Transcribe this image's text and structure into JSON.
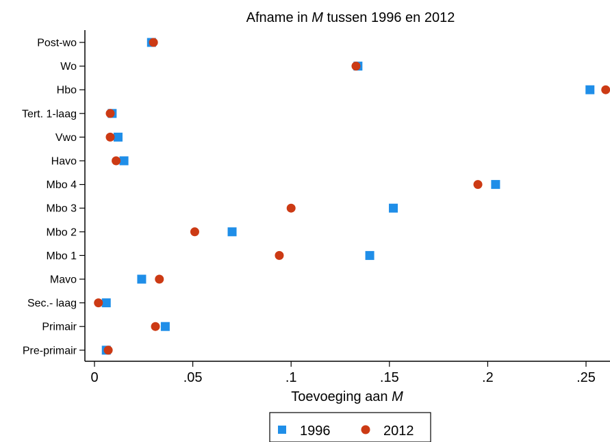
{
  "chart_data": {
    "type": "scatter",
    "title_prefix": "Afname in ",
    "title_var": "M",
    "title_suffix": " tussen 1996 en 2012",
    "xlabel_prefix": "Toevoeging aan ",
    "xlabel_var": "M",
    "ylabel": "",
    "xlim": [
      -0.005,
      0.26
    ],
    "xticks": [
      0,
      0.05,
      0.1,
      0.15,
      0.2,
      0.25
    ],
    "xtick_labels": [
      "0",
      ".05",
      ".1",
      ".15",
      ".2",
      ".25"
    ],
    "grid": false,
    "legend_position": "bottom",
    "categories": [
      "Post-wo",
      "Wo",
      "Hbo",
      "Tert. 1-laag",
      "Vwo",
      "Havo",
      "Mbo 4",
      "Mbo 3",
      "Mbo 2",
      "Mbo 1",
      "Mavo",
      "Sec.- laag",
      "Primair",
      "Pre-primair"
    ],
    "series": [
      {
        "name": "1996",
        "marker": "square",
        "color": "#1f8ee8",
        "values": [
          0.029,
          0.134,
          0.252,
          0.009,
          0.012,
          0.015,
          0.204,
          0.152,
          0.07,
          0.14,
          0.024,
          0.006,
          0.036,
          0.006
        ]
      },
      {
        "name": "2012",
        "marker": "circle",
        "color": "#cc3a14",
        "values": [
          0.03,
          0.133,
          0.26,
          0.008,
          0.008,
          0.011,
          0.195,
          0.1,
          0.051,
          0.094,
          0.033,
          0.002,
          0.031,
          0.007
        ]
      }
    ]
  }
}
